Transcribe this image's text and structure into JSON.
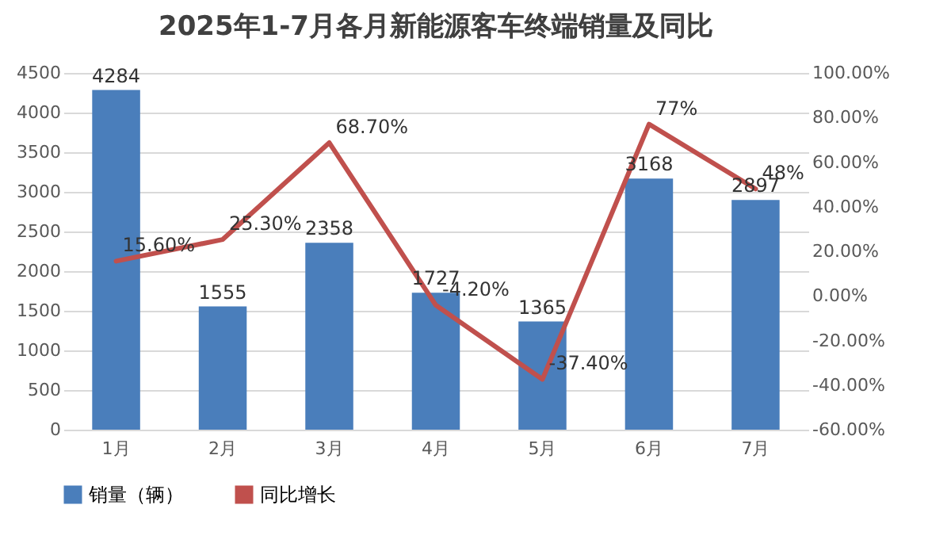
{
  "chart_data": {
    "type": "bar",
    "title": "2025年1-7月各月新能源客车终端销量及同比",
    "categories": [
      "1月",
      "2月",
      "3月",
      "4月",
      "5月",
      "6月",
      "7月"
    ],
    "series": [
      {
        "name": "销量（辆）",
        "color": "#4a7ebb",
        "values": [
          4284,
          1555,
          2358,
          1727,
          1365,
          3168,
          2897
        ],
        "value_labels": [
          "4284",
          "1555",
          "2358",
          "1727",
          "1365",
          "3168",
          "2897"
        ]
      },
      {
        "name": "同比增长",
        "type": "line",
        "axis": "y2",
        "color": "#c0504d",
        "line_style": "solid",
        "values": [
          15.6,
          25.3,
          68.7,
          -4.2,
          -37.4,
          77,
          48
        ],
        "value_labels": [
          "15.60%",
          "25.30%",
          "68.70%",
          "-4.20%",
          "-37.40%",
          "77%",
          "48%"
        ]
      }
    ],
    "ylim": [
      0,
      4500
    ],
    "yticks": [
      0,
      500,
      1000,
      1500,
      2000,
      2500,
      3000,
      3500,
      4000,
      4500
    ],
    "y2lim": [
      -60,
      100
    ],
    "y2ticks": [
      {
        "value": -60,
        "label": "-60.00%"
      },
      {
        "value": -40,
        "label": "-40.00%"
      },
      {
        "value": -20,
        "label": "-20.00%"
      },
      {
        "value": 0,
        "label": "0.00%"
      },
      {
        "value": 20,
        "label": "20.00%"
      },
      {
        "value": 40,
        "label": "40.00%"
      },
      {
        "value": 60,
        "label": "60.00%"
      },
      {
        "value": 80,
        "label": "80.00%"
      },
      {
        "value": 100,
        "label": "100.00%"
      }
    ],
    "grid": "y",
    "legend": "bottom"
  }
}
